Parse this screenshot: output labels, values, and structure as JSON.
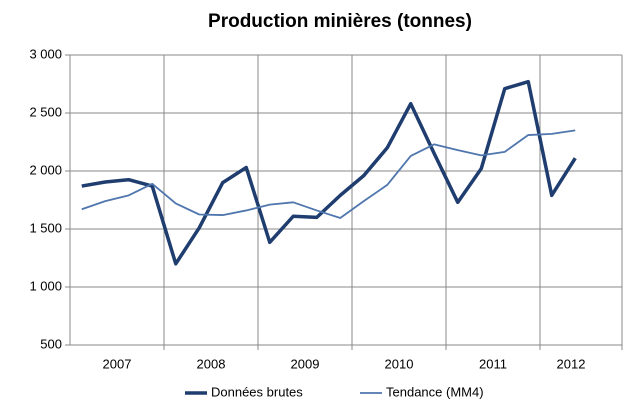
{
  "chart_data": {
    "type": "line",
    "title": "Production minières (tonnes)",
    "category_groups": [
      "2007",
      "2008",
      "2009",
      "2010",
      "2011",
      "2012"
    ],
    "categories": [
      null,
      null,
      null,
      null,
      null,
      null,
      null,
      null,
      null,
      null,
      null,
      null,
      null,
      null,
      null,
      null,
      null,
      null,
      null,
      null,
      null,
      null
    ],
    "series": [
      {
        "name": "Données brutes",
        "color": "#1f3d6e",
        "values": [
          1870,
          1905,
          1925,
          1870,
          1200,
          1510,
          1900,
          2030,
          1385,
          1610,
          1600,
          1790,
          1960,
          2200,
          2580,
          2150,
          1730,
          2020,
          2710,
          2770,
          1790,
          2110
        ]
      },
      {
        "name": "Tendance (MM4)",
        "color": "#4f76ad",
        "values": [
          1670,
          1740,
          1790,
          1890,
          1720,
          1625,
          1620,
          1660,
          1710,
          1730,
          1660,
          1595,
          1740,
          1880,
          2130,
          2230,
          2180,
          2135,
          2165,
          2310,
          2320,
          2350
        ]
      }
    ],
    "ylim": [
      500,
      3000
    ],
    "yticks": [
      500,
      {
        "value": 1000,
        "label": "1 000"
      },
      {
        "value": 1500,
        "label": "1 500"
      },
      {
        "value": 2000,
        "label": "2 000"
      },
      {
        "value": 2500,
        "label": "2 500"
      },
      {
        "value": 3000,
        "label": "3 000"
      }
    ],
    "grid": true,
    "legend": "bottom"
  }
}
